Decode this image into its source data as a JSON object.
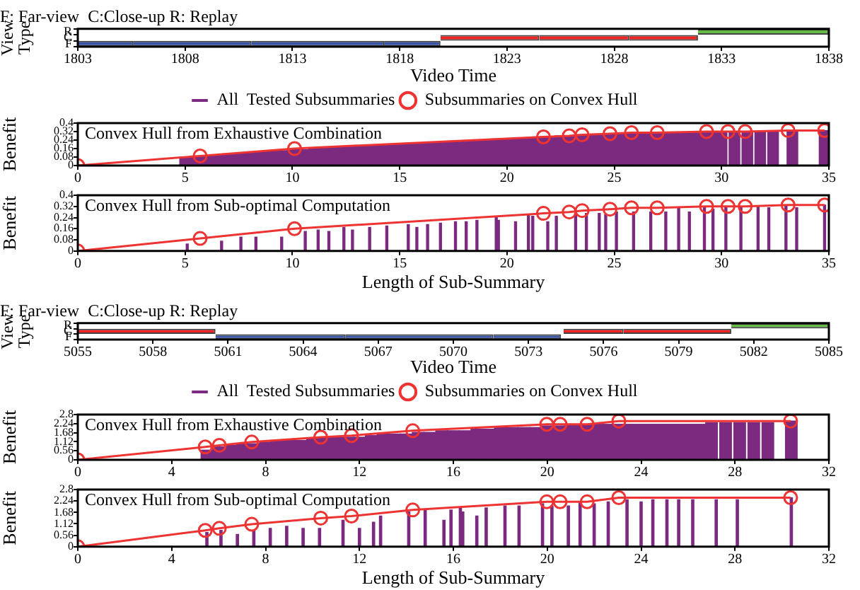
{
  "chart_data": [
    {
      "type": "bar",
      "orientation": "horizontal",
      "title": "F: Far-view  C:Close-up R: Replay",
      "xlabel": "Video Time",
      "ylabel": "View Type",
      "categories": [
        "R",
        "C",
        "F"
      ],
      "xlim": [
        1803,
        1838
      ],
      "xticks": [
        1803,
        1808,
        1813,
        1818,
        1823,
        1828,
        1833,
        1838
      ],
      "grid": false,
      "series": [
        {
          "color": "#3b55a4",
          "values": [
            null,
            null,
            2.6
          ],
          "base": [
            null,
            null,
            1803
          ]
        },
        {
          "color": "#3b55a4",
          "values": [
            null,
            null,
            5.5
          ],
          "base": [
            null,
            null,
            1805.6
          ]
        },
        {
          "color": "#3b55a4",
          "values": [
            null,
            null,
            6.2
          ],
          "base": [
            null,
            null,
            1811.1
          ]
        },
        {
          "color": "#3b55a4",
          "values": [
            null,
            null,
            2.6
          ],
          "base": [
            null,
            null,
            1817.3
          ]
        },
        {
          "color": "#ee2222",
          "values": [
            null,
            4.6,
            null
          ],
          "base": [
            null,
            1819.9,
            null
          ]
        },
        {
          "color": "#ee2222",
          "values": [
            null,
            4.2,
            null
          ],
          "base": [
            null,
            1824.5,
            null
          ]
        },
        {
          "color": "#ee2222",
          "values": [
            null,
            3.2,
            null
          ],
          "base": [
            null,
            1828.7,
            null
          ]
        },
        {
          "color": "#66bb44",
          "values": [
            6.1,
            null,
            null
          ],
          "base": [
            1831.9,
            null,
            null
          ]
        }
      ]
    },
    {
      "type": "bar",
      "title": "Convex Hull from Exhaustive Combination",
      "ylabel": "Benefit",
      "xlim": [
        0,
        35
      ],
      "xticks": [
        0,
        5,
        10,
        15,
        20,
        25,
        30,
        35
      ],
      "ylim": [
        0,
        0.4
      ],
      "yticks": [
        0,
        0.08,
        0.16,
        0.24,
        0.32,
        0.4
      ],
      "grid": false,
      "legend": "top",
      "marker": "circle",
      "series": [
        {
          "name": "All  Tested Subsummaries",
          "color": "#7b2a80",
          "x": [
            5,
            5.5,
            6,
            6.5,
            7,
            7.5,
            8,
            8.5,
            9,
            9.5,
            10,
            10.5,
            11,
            11.5,
            12,
            12.5,
            13,
            13.5,
            14,
            14.5,
            15,
            15.5,
            16,
            16.5,
            17,
            17.5,
            18,
            18.5,
            19,
            19.5,
            20,
            20.5,
            21,
            21.5,
            22,
            22.5,
            23,
            23.5,
            24,
            24.5,
            25,
            25.5,
            26,
            26.5,
            27,
            27.5,
            28,
            28.5,
            29,
            29.5,
            30,
            30.6,
            31.2,
            31.8,
            32.4,
            33.3,
            34.8
          ],
          "values": [
            0.08,
            0.09,
            0.09,
            0.1,
            0.11,
            0.11,
            0.12,
            0.13,
            0.14,
            0.14,
            0.15,
            0.15,
            0.16,
            0.17,
            0.17,
            0.18,
            0.18,
            0.19,
            0.19,
            0.2,
            0.2,
            0.21,
            0.21,
            0.22,
            0.22,
            0.23,
            0.23,
            0.24,
            0.24,
            0.25,
            0.25,
            0.26,
            0.26,
            0.27,
            0.27,
            0.28,
            0.28,
            0.29,
            0.29,
            0.29,
            0.3,
            0.3,
            0.3,
            0.3,
            0.31,
            0.31,
            0.31,
            0.31,
            0.32,
            0.31,
            0.31,
            0.32,
            0.32,
            0.32,
            0.32,
            0.33,
            0.33
          ]
        },
        {
          "type": "line",
          "name": "Subsummaries on Convex Hull",
          "color": "#ee3333",
          "x": [
            0,
            5.7,
            10.1,
            21.7,
            22.9,
            23.5,
            24.8,
            25.8,
            27,
            29.3,
            30.3,
            31.1,
            33.1,
            34.8
          ],
          "values": [
            0,
            0.09,
            0.16,
            0.27,
            0.28,
            0.29,
            0.3,
            0.31,
            0.31,
            0.32,
            0.32,
            0.32,
            0.33,
            0.33
          ]
        }
      ]
    },
    {
      "type": "bar",
      "title": "Convex Hull from Sub-optimal Computation",
      "xlabel": "Length of Sub-Summary",
      "ylabel": "Benefit",
      "xlim": [
        0,
        35
      ],
      "xticks": [
        0,
        5,
        10,
        15,
        20,
        25,
        30,
        35
      ],
      "ylim": [
        0,
        0.4
      ],
      "yticks": [
        0,
        0.08,
        0.16,
        0.24,
        0.32,
        0.4
      ],
      "grid": false,
      "marker": "circle",
      "series": [
        {
          "color": "#7b2a80",
          "x": [
            5.1,
            6.7,
            7.6,
            8.3,
            9.5,
            10.6,
            11.2,
            11.7,
            12.4,
            12.8,
            13.6,
            14.4,
            15.4,
            15.8,
            16.3,
            16.9,
            17.6,
            18.1,
            18.6,
            19.5,
            19.6,
            20.4,
            21,
            21.2,
            21.9,
            22.3,
            23.2,
            23.7,
            24.3,
            24.6,
            25.1,
            25.9,
            26.7,
            27.4,
            28,
            28.5,
            29.2,
            29.6,
            30.2,
            30.9,
            31.7,
            32.2,
            33,
            33.5,
            34.8
          ],
          "values": [
            0.05,
            0.07,
            0.1,
            0.1,
            0.1,
            0.14,
            0.15,
            0.14,
            0.17,
            0.15,
            0.17,
            0.18,
            0.19,
            0.17,
            0.19,
            0.2,
            0.21,
            0.21,
            0.22,
            0.24,
            0.22,
            0.21,
            0.26,
            0.25,
            0.21,
            0.25,
            0.27,
            0.27,
            0.27,
            0.26,
            0.28,
            0.28,
            0.28,
            0.28,
            0.31,
            0.28,
            0.31,
            0.3,
            0.32,
            0.31,
            0.32,
            0.31,
            0.32,
            0.31,
            0.33
          ]
        },
        {
          "type": "line",
          "color": "#ee3333",
          "x": [
            0,
            5.7,
            10.1,
            21.7,
            22.9,
            23.5,
            24.8,
            25.8,
            27,
            29.3,
            30.3,
            31.1,
            33.1,
            34.8
          ],
          "values": [
            0,
            0.09,
            0.16,
            0.27,
            0.28,
            0.29,
            0.3,
            0.31,
            0.31,
            0.32,
            0.32,
            0.32,
            0.33,
            0.33
          ]
        }
      ]
    },
    {
      "type": "bar",
      "orientation": "horizontal",
      "title": "F: Far-view  C:Close-up R: Replay",
      "xlabel": "Video Time",
      "ylabel": "View Type",
      "categories": [
        "R",
        "C",
        "F"
      ],
      "xlim": [
        5055,
        5085
      ],
      "xticks": [
        5055,
        5058,
        5061,
        5064,
        5067,
        5070,
        5073,
        5076,
        5079,
        5082,
        5085
      ],
      "grid": false,
      "series": [
        {
          "color": "#ee2222",
          "values": [
            null,
            5.5,
            null
          ],
          "base": [
            null,
            5055,
            null
          ]
        },
        {
          "color": "#3b55a4",
          "values": [
            null,
            null,
            5.2
          ],
          "base": [
            null,
            null,
            5060.5
          ]
        },
        {
          "color": "#3b55a4",
          "values": [
            null,
            null,
            5.9
          ],
          "base": [
            null,
            null,
            5065.7
          ]
        },
        {
          "color": "#3b55a4",
          "values": [
            null,
            null,
            2.7
          ],
          "base": [
            null,
            null,
            5071.6
          ]
        },
        {
          "color": "#ee2222",
          "values": [
            null,
            2.4,
            null
          ],
          "base": [
            null,
            5074.4,
            null
          ]
        },
        {
          "color": "#ee2222",
          "values": [
            null,
            4.3,
            null
          ],
          "base": [
            null,
            5076.8,
            null
          ]
        },
        {
          "color": "#66bb44",
          "values": [
            3.9,
            null,
            null
          ],
          "base": [
            5081.1,
            null,
            null
          ]
        }
      ]
    },
    {
      "type": "bar",
      "title": "Convex Hull from Exhaustive Combination",
      "ylabel": "Benefit",
      "xlim": [
        0,
        32
      ],
      "xticks": [
        0,
        4,
        8,
        12,
        16,
        20,
        24,
        28,
        32
      ],
      "ylim": [
        0,
        2.8
      ],
      "yticks": [
        0,
        0.56,
        1.12,
        1.68,
        2.24,
        2.8
      ],
      "grid": false,
      "legend": "top",
      "marker": "circle",
      "series": [
        {
          "name": "All  Tested Subsummaries",
          "color": "#7b2a80",
          "x": [
            5.5,
            6,
            6.5,
            7,
            7.5,
            8,
            8.5,
            9,
            9.5,
            10,
            10.5,
            11,
            11.5,
            12,
            12.5,
            13,
            13.5,
            14,
            14.5,
            15,
            15.5,
            16,
            16.5,
            17,
            17.5,
            18,
            18.5,
            19,
            19.5,
            20,
            20.5,
            21,
            21.5,
            22,
            22.5,
            23,
            23.5,
            24,
            24.5,
            25,
            25.5,
            26,
            26.5,
            27,
            27.6,
            28.2,
            28.8,
            29.4,
            30.4
          ],
          "values": [
            0.6,
            0.8,
            0.9,
            1,
            1,
            1.1,
            1.2,
            1.2,
            1.2,
            1.3,
            1.4,
            1.4,
            1.4,
            1.4,
            1.5,
            1.6,
            1.6,
            1.6,
            1.7,
            1.7,
            1.8,
            1.8,
            1.8,
            1.9,
            1.9,
            2,
            2,
            2,
            2,
            2.1,
            2.1,
            2.2,
            2.2,
            2.2,
            2.2,
            2.2,
            2.2,
            2.2,
            2.2,
            2.2,
            2.2,
            2.2,
            2.2,
            2.3,
            2.3,
            2.3,
            2.3,
            2.3,
            2.4
          ]
        },
        {
          "type": "line",
          "name": "Subsummaries on Convex Hull",
          "color": "#ee3333",
          "x": [
            0,
            5.43,
            6.03,
            7.41,
            10.35,
            11.66,
            14.27,
            19.98,
            20.55,
            21.7,
            23.05,
            30.37
          ],
          "values": [
            0,
            0.8,
            0.9,
            1.1,
            1.4,
            1.5,
            1.8,
            2.2,
            2.2,
            2.2,
            2.4,
            2.4
          ]
        }
      ]
    },
    {
      "type": "bar",
      "title": "Convex Hull from Sub-optimal Computation",
      "xlabel": "Length of Sub-Summary",
      "ylabel": "Benefit",
      "xlim": [
        0,
        32
      ],
      "xticks": [
        0,
        4,
        8,
        12,
        16,
        20,
        24,
        28,
        32
      ],
      "ylim": [
        0,
        2.8
      ],
      "yticks": [
        0,
        0.56,
        1.12,
        1.68,
        2.24,
        2.8
      ],
      "grid": false,
      "marker": "circle",
      "series": [
        {
          "color": "#7b2a80",
          "x": [
            5.5,
            6.1,
            6.8,
            7.5,
            8.2,
            8.9,
            9.6,
            10.3,
            11.3,
            12,
            12.6,
            12.9,
            14.1,
            14.8,
            15.6,
            15.9,
            16.3,
            16.4,
            17,
            17.4,
            18.2,
            18.8,
            19.8,
            20.2,
            20.9,
            21.4,
            22,
            22.6,
            23.4,
            24,
            24.5,
            25.1,
            25.6,
            26.2,
            27.2,
            28.1,
            30.4
          ],
          "values": [
            0.7,
            0.8,
            0.6,
            0.8,
            0.9,
            1,
            0.9,
            0.9,
            1.3,
            0.9,
            1.2,
            1.5,
            1.7,
            1.8,
            1.3,
            1.8,
            1.9,
            1.7,
            1.5,
            1.9,
            2,
            2,
            2.1,
            2,
            2,
            2.2,
            2.1,
            2.2,
            2.3,
            2.2,
            2.3,
            2.3,
            2.3,
            2.3,
            2.3,
            2.3,
            2.4
          ]
        },
        {
          "type": "line",
          "color": "#ee3333",
          "x": [
            0,
            5.43,
            6.03,
            7.41,
            10.35,
            11.66,
            14.27,
            19.98,
            20.55,
            21.7,
            23.05,
            30.37
          ],
          "values": [
            0,
            0.8,
            0.9,
            1.1,
            1.4,
            1.5,
            1.8,
            2.2,
            2.2,
            2.2,
            2.4,
            2.4
          ]
        }
      ]
    }
  ]
}
